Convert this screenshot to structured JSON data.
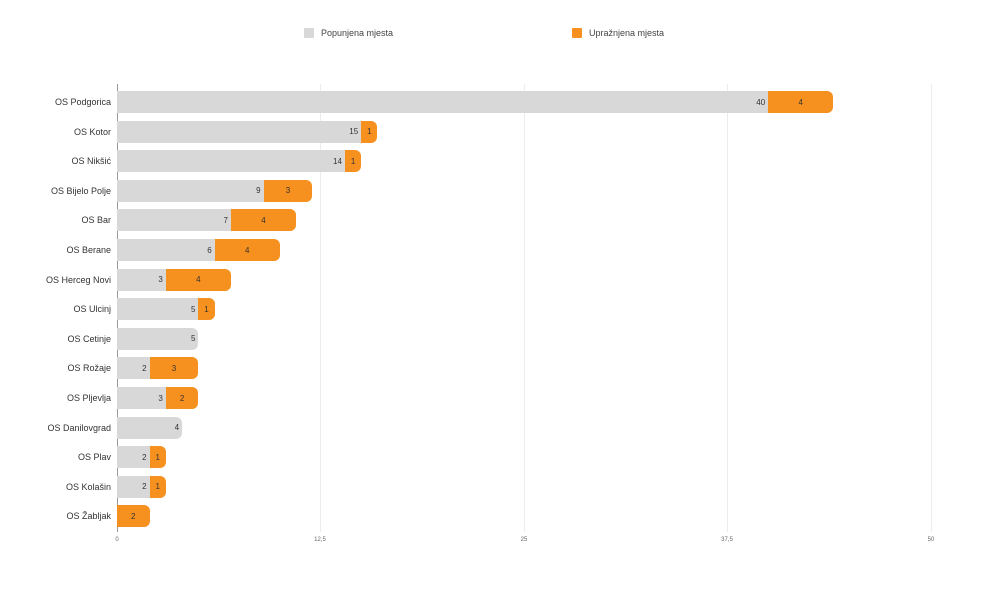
{
  "legend": {
    "filled_label": "Popunjena mjesta",
    "vacant_label": "Upražnjena mjesta",
    "filled_color": "#d8d8d8",
    "vacant_color": "#f6901e"
  },
  "axis": {
    "ticks": [
      "0",
      "12,5",
      "25",
      "37,5",
      "50"
    ]
  },
  "chart_data": {
    "type": "bar",
    "orientation": "horizontal",
    "stacked": true,
    "title": "",
    "xlabel": "",
    "ylabel": "",
    "xlim": [
      0,
      50
    ],
    "xticks": [
      0,
      12.5,
      25,
      37.5,
      50
    ],
    "grid": true,
    "legend_position": "top",
    "categories": [
      "OS Podgorica",
      "OS Kotor",
      "OS Nikšić",
      "OS Bijelo Polje",
      "OS Bar",
      "OS Berane",
      "OS Herceg Novi",
      "OS Ulcinj",
      "OS Cetinje",
      "OS Rožaje",
      "OS Pljevlja",
      "OS Danilovgrad",
      "OS Plav",
      "OS Kolašin",
      "OS Žabljak"
    ],
    "series": [
      {
        "name": "Popunjena mjesta",
        "color": "#d8d8d8",
        "values": [
          40,
          15,
          14,
          9,
          7,
          6,
          3,
          5,
          5,
          2,
          3,
          4,
          2,
          2,
          0
        ]
      },
      {
        "name": "Upražnjena mjesta",
        "color": "#f6901e",
        "values": [
          4,
          1,
          1,
          3,
          4,
          4,
          4,
          1,
          0,
          3,
          2,
          0,
          1,
          1,
          2
        ]
      }
    ]
  }
}
